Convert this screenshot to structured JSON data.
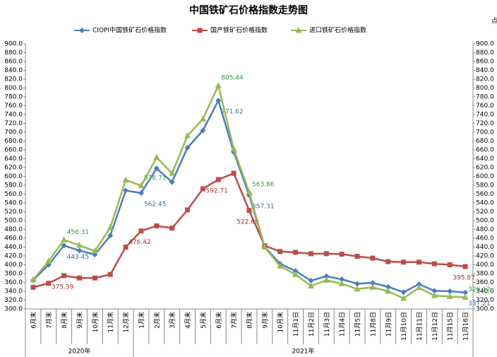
{
  "chart_data": {
    "type": "line",
    "title": "中国铁矿石价格指数走势图",
    "y2_label": "点",
    "categories": [
      "6月末",
      "7月末",
      "8月末",
      "9月末",
      "10月末",
      "11月末",
      "12月末",
      "1月末",
      "2月末",
      "3月末",
      "4月末",
      "5月末",
      "6月末",
      "7月末",
      "8月末",
      "9月末",
      "10月末",
      "11月1日",
      "11月2日",
      "11月3日",
      "11月4日",
      "11月5日",
      "11月8日",
      "11月9日",
      "11月10日",
      "11月11日",
      "11月12日",
      "11月15日",
      "11月16日"
    ],
    "x_groups": [
      {
        "label": "2020年",
        "start": 0,
        "end": 6
      },
      {
        "label": "2021年",
        "start": 7,
        "end": 28
      }
    ],
    "series": [
      {
        "name": "CIOPI中国铁矿石价格指数",
        "color": "#4a7ebb",
        "label_color": "#2a6fa8",
        "marker": "diamond",
        "values": [
          365,
          400,
          443.45,
          432,
          423,
          466,
          568,
          562.45,
          618,
          587,
          665,
          704,
          771.62,
          655,
          557.31,
          441,
          402,
          386,
          364,
          374,
          367,
          357,
          359,
          350,
          338,
          356,
          341,
          340,
          337.21
        ],
        "value_labels": [
          null,
          null,
          "443.45",
          null,
          null,
          null,
          null,
          "562.45",
          null,
          null,
          null,
          null,
          "771.62",
          null,
          "557.31",
          null,
          null,
          null,
          null,
          null,
          null,
          null,
          null,
          null,
          null,
          null,
          null,
          null,
          "337.21"
        ]
      },
      {
        "name": "国产铁矿石价格指数",
        "color": "#be4b48",
        "label_color": "#b0302c",
        "marker": "square",
        "values": [
          349,
          358,
          375.39,
          370,
          370,
          378,
          440,
          476.42,
          488,
          483,
          524,
          572,
          592.71,
          607,
          522.69,
          443,
          430,
          428,
          425,
          425,
          424,
          419,
          415,
          407,
          406,
          406,
          402,
          400,
          395.87
        ],
        "value_labels": [
          null,
          null,
          "375.39",
          null,
          null,
          null,
          null,
          "476.42",
          null,
          null,
          null,
          null,
          "592.71",
          null,
          "522.69",
          null,
          null,
          null,
          null,
          null,
          null,
          null,
          null,
          null,
          null,
          null,
          null,
          null,
          "395.87"
        ]
      },
      {
        "name": "进口铁矿石价格指数",
        "color": "#98b954",
        "label_color": "#2e9e3e",
        "marker": "triangle",
        "values": [
          366,
          408,
          456.31,
          444,
          431,
          484,
          592,
          578.71,
          643,
          607,
          692,
          730,
          805.44,
          662,
          563.86,
          440,
          397,
          378,
          352,
          365,
          357,
          345,
          349,
          340,
          324,
          348,
          330,
          328,
          326.12
        ],
        "value_labels": [
          null,
          null,
          "456.31",
          null,
          null,
          null,
          null,
          "578.71",
          null,
          null,
          null,
          null,
          "805.44",
          null,
          "563.86",
          null,
          null,
          null,
          null,
          null,
          null,
          null,
          null,
          null,
          null,
          null,
          null,
          null,
          "326.12"
        ]
      }
    ],
    "ylim": [
      300,
      900
    ],
    "yticks": [
      {
        "value": 300,
        "label": "300.0"
      },
      {
        "value": 320,
        "label": "320.0"
      },
      {
        "value": 340,
        "label": "340.0"
      },
      {
        "value": 360,
        "label": "360.0"
      },
      {
        "value": 380,
        "label": "380.0"
      },
      {
        "value": 400,
        "label": "400.0"
      },
      {
        "value": 420,
        "label": "420.0"
      },
      {
        "value": 440,
        "label": "440.0"
      },
      {
        "value": 460,
        "label": "460.0"
      },
      {
        "value": 480,
        "label": "480.0"
      },
      {
        "value": 500,
        "label": "500.0"
      },
      {
        "value": 520,
        "label": "520.0"
      },
      {
        "value": 540,
        "label": "540.0"
      },
      {
        "value": 560,
        "label": "560.0"
      },
      {
        "value": 580,
        "label": "580.0"
      },
      {
        "value": 600,
        "label": "600.0"
      },
      {
        "value": 620,
        "label": "620.0"
      },
      {
        "value": 640,
        "label": "640.0"
      },
      {
        "value": 660,
        "label": "660.0"
      },
      {
        "value": 680,
        "label": "680.0"
      },
      {
        "value": 700,
        "label": "700.0"
      },
      {
        "value": 720,
        "label": "720.0"
      },
      {
        "value": 740,
        "label": "740.0"
      },
      {
        "value": 760,
        "label": "760.0"
      },
      {
        "value": 780,
        "label": "780.0"
      },
      {
        "value": 800,
        "label": "800.0"
      },
      {
        "value": 820,
        "label": "820.0"
      },
      {
        "value": 840,
        "label": "840.0"
      },
      {
        "value": 860,
        "label": "860.0"
      },
      {
        "value": 880,
        "label": "880.0"
      },
      {
        "value": 900,
        "label": "900.0"
      }
    ],
    "y2lim": [
      300,
      900
    ],
    "y2ticks": [
      {
        "value": 300,
        "label": "300.0"
      },
      {
        "value": 320,
        "label": "320.0"
      },
      {
        "value": 340,
        "label": "340.0"
      },
      {
        "value": 360,
        "label": "360.0"
      },
      {
        "value": 380,
        "label": "380.0"
      },
      {
        "value": 400,
        "label": "400.0"
      },
      {
        "value": 420,
        "label": "420.0"
      },
      {
        "value": 440,
        "label": "440.0"
      },
      {
        "value": 460,
        "label": "460.0"
      },
      {
        "value": 480,
        "label": "480.0"
      },
      {
        "value": 500,
        "label": "500.0"
      },
      {
        "value": 520,
        "label": "520.0"
      },
      {
        "value": 540,
        "label": "540.0"
      },
      {
        "value": 560,
        "label": "560.0"
      },
      {
        "value": 580,
        "label": "580.0"
      },
      {
        "value": 600,
        "label": "600.0"
      },
      {
        "value": 620,
        "label": "620.0"
      },
      {
        "value": 640,
        "label": "640.0"
      },
      {
        "value": 660,
        "label": "660.0"
      },
      {
        "value": 680,
        "label": "680.0"
      },
      {
        "value": 700,
        "label": "700.0"
      },
      {
        "value": 720,
        "label": "720.0"
      },
      {
        "value": 740,
        "label": "740.0"
      },
      {
        "value": 760,
        "label": "760.0"
      },
      {
        "value": 780,
        "label": "780.0"
      },
      {
        "value": 800,
        "label": "800.0"
      },
      {
        "value": 820,
        "label": "820.0"
      },
      {
        "value": 840,
        "label": "840.0"
      },
      {
        "value": 860,
        "label": "860.0"
      },
      {
        "value": 880,
        "label": "880.0"
      },
      {
        "value": 900,
        "label": "900.0"
      }
    ],
    "legend": "top",
    "grid": false
  }
}
